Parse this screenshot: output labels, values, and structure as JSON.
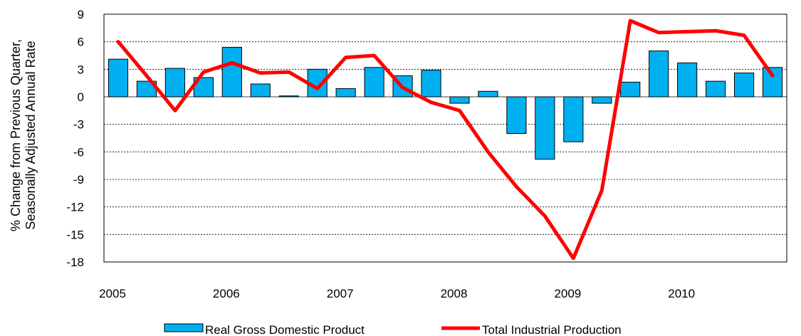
{
  "chart_data": {
    "type": "bar",
    "title": "",
    "xlabel": "",
    "ylabel_line1": "% Change from Previous Quarter,",
    "ylabel_line2": "Seasonally Adjusted Annual Rate",
    "ylim": [
      -18,
      9
    ],
    "yticks": [
      "9",
      "6",
      "3",
      "0",
      "-3",
      "-6",
      "-9",
      "-12",
      "-15",
      "-18"
    ],
    "ytick_values": [
      9,
      6,
      3,
      0,
      -3,
      -6,
      -9,
      -12,
      -15,
      -18
    ],
    "years": [
      "2005",
      "2006",
      "2007",
      "2008",
      "2009",
      "2010"
    ],
    "quarters": [
      "2005Q1",
      "2005Q2",
      "2005Q3",
      "2005Q4",
      "2006Q1",
      "2006Q2",
      "2006Q3",
      "2006Q4",
      "2007Q1",
      "2007Q2",
      "2007Q3",
      "2007Q4",
      "2008Q1",
      "2008Q2",
      "2008Q3",
      "2008Q4",
      "2009Q1",
      "2009Q2",
      "2009Q3",
      "2009Q4",
      "2010Q1",
      "2010Q2",
      "2010Q3",
      "2010Q4"
    ],
    "grid": true,
    "legend_position": "bottom",
    "series": [
      {
        "name": "Real Gross Domestic Product",
        "kind": "bar",
        "color": "#00B0F0",
        "values": [
          4.1,
          1.7,
          3.1,
          2.1,
          5.4,
          1.4,
          0.1,
          3.0,
          0.9,
          3.2,
          2.3,
          2.9,
          -0.7,
          0.6,
          -4.0,
          -6.8,
          -4.9,
          -0.7,
          1.6,
          5.0,
          3.7,
          1.7,
          2.6,
          3.2
        ]
      },
      {
        "name": "Total Industrial Production",
        "kind": "line",
        "color": "#FF0000",
        "values": [
          6.0,
          2.3,
          -1.5,
          2.7,
          3.7,
          2.6,
          2.7,
          0.9,
          4.3,
          4.5,
          1.0,
          -0.6,
          -1.5,
          -6.0,
          -9.8,
          -13.0,
          -17.6,
          -10.2,
          8.3,
          7.0,
          7.1,
          7.2,
          6.7,
          2.3
        ]
      }
    ]
  }
}
